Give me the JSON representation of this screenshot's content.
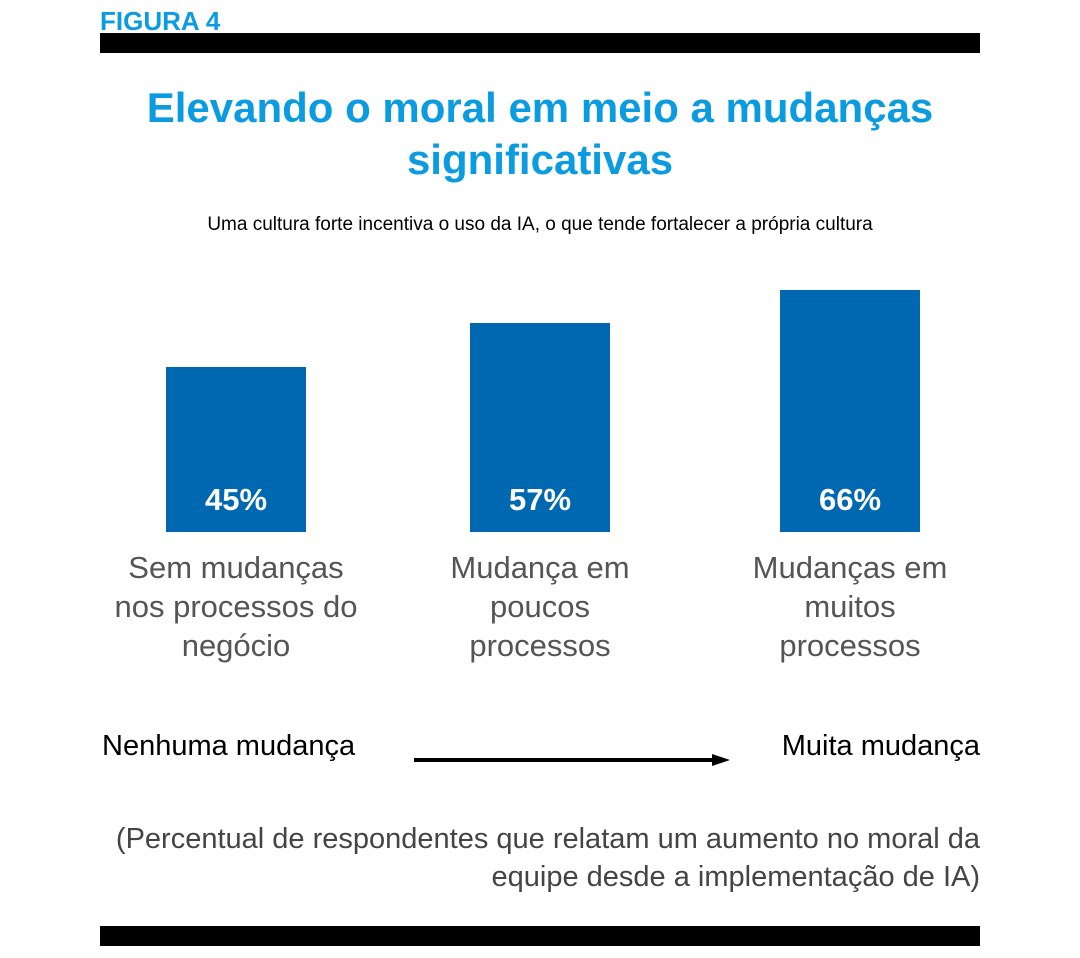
{
  "figure_label": "FIGURA 4",
  "chart_data": {
    "type": "bar",
    "title": "Elevando o moral em meio a mudanças significativas",
    "subtitle": "Uma cultura forte incentiva o uso da IA, o que tende fortalecer a própria cultura",
    "categories": [
      "Sem mudanças nos processos do negócio",
      "Mudança em poucos processos",
      "Mudanças em muitos processos"
    ],
    "values": [
      45,
      57,
      66
    ],
    "value_labels": [
      "45%",
      "57%",
      "66%"
    ],
    "color": "#0068b1",
    "ylim": [
      0,
      70
    ],
    "axis_left": "Nenhuma mudança",
    "axis_right": "Muita mudança",
    "note": "(Percentual de respondentes que relatam um aumento no moral da equipe desde a implementação de IA)"
  }
}
